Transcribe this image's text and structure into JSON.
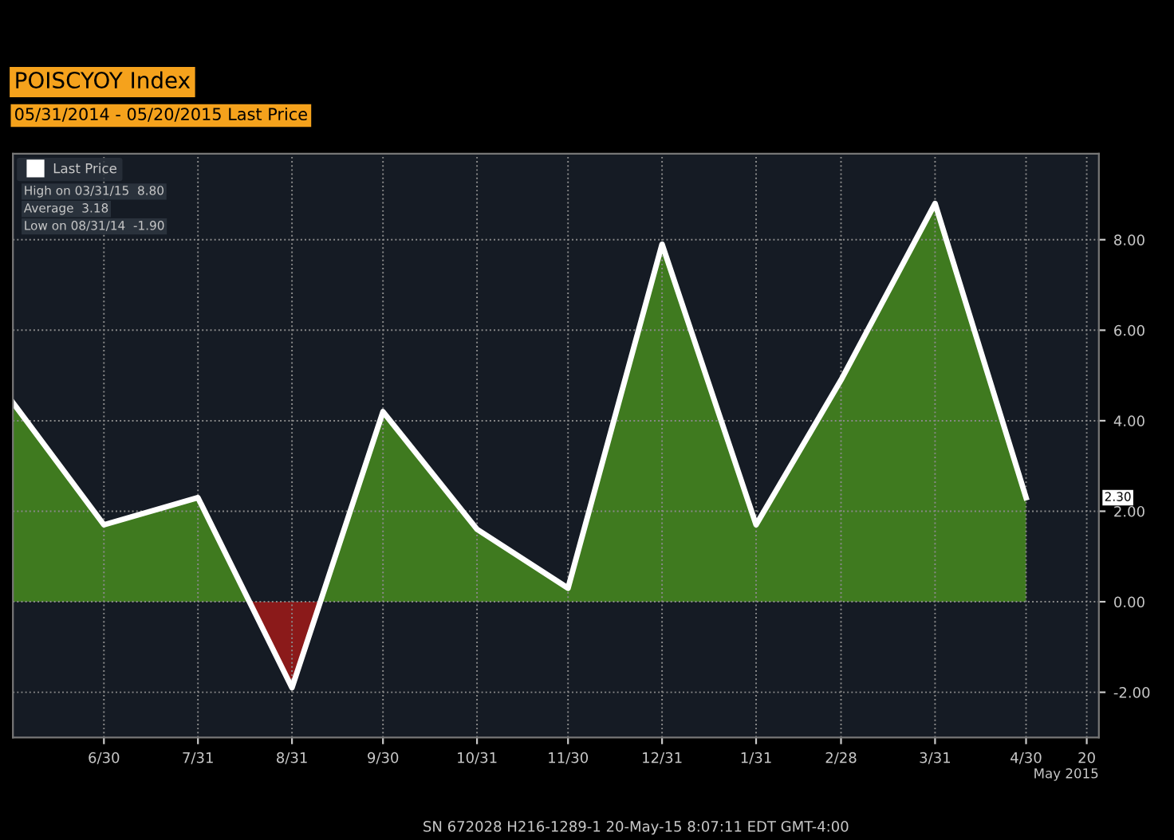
{
  "chart_data": {
    "type": "area",
    "title": "POISCYOY Index",
    "subtitle": "05/31/2014 - 05/20/2015 Last Price",
    "xlabel": "May 2015",
    "x": [
      "2014-05-31",
      "2014-06-30",
      "2014-07-31",
      "2014-08-31",
      "2014-09-30",
      "2014-10-31",
      "2014-11-30",
      "2014-12-31",
      "2015-01-31",
      "2015-02-28",
      "2015-03-31",
      "2015-04-30"
    ],
    "series": [
      {
        "name": "Last Price",
        "color": "#3f7a1f",
        "values": [
          4.4,
          1.7,
          2.3,
          -1.9,
          4.2,
          1.6,
          0.3,
          7.9,
          1.7,
          4.9,
          8.8,
          2.3
        ]
      },
      {
        "color": "#8b1a1a",
        "x": [
          "2014-08-17",
          "2014-08-31",
          "2014-09-09"
        ],
        "values": [
          0,
          -1.9,
          0
        ]
      }
    ],
    "xlim": [
      "2014-05-31",
      "2015-05-24"
    ],
    "xticks": [
      {
        "value": "2014-06-30",
        "label": "6/30"
      },
      {
        "value": "2014-07-31",
        "label": "7/31"
      },
      {
        "value": "2014-08-31",
        "label": "8/31"
      },
      {
        "value": "2014-09-30",
        "label": "9/30"
      },
      {
        "value": "2014-10-31",
        "label": "10/31"
      },
      {
        "value": "2014-11-30",
        "label": "11/30"
      },
      {
        "value": "2014-12-31",
        "label": "12/31"
      },
      {
        "value": "2015-01-31",
        "label": "1/31"
      },
      {
        "value": "2015-02-28",
        "label": "2/28"
      },
      {
        "value": "2015-03-31",
        "label": "3/31"
      },
      {
        "value": "2015-04-30",
        "label": "4/30"
      },
      {
        "value": "2015-05-20",
        "label": "20"
      }
    ],
    "ylim": [
      -3.0,
      9.9
    ],
    "yticks": [
      {
        "value": -2,
        "label": "-2.00"
      },
      {
        "value": 0,
        "label": "0.00"
      },
      {
        "value": 2,
        "label": "2.00"
      },
      {
        "value": 4,
        "label": "4.00"
      },
      {
        "value": 6,
        "label": "6.00"
      },
      {
        "value": 8,
        "label": "8.00"
      }
    ],
    "grid": true,
    "legend": "top left",
    "annotations": [
      "High on 03/31/15  8.80",
      "Average  3.18",
      "Low on 08/31/14  -1.90",
      "2.30",
      "SN 672028 H216-1289-1 20-May-15 8:07:11 EDT GMT-4:00"
    ]
  }
}
